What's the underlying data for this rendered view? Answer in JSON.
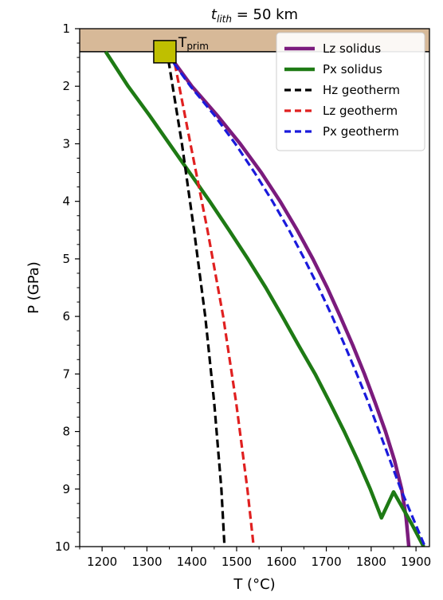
{
  "chart_data": {
    "type": "line",
    "title": {
      "main": "t",
      "sub": "lith",
      "rest": " = 50 km"
    },
    "xlabel": "T (°C)",
    "ylabel": "P (GPa)",
    "xlim": [
      1150,
      1930
    ],
    "ylim": [
      10,
      1
    ],
    "y_inverted": true,
    "xticks": [
      "1200",
      "1300",
      "1400",
      "1500",
      "1600",
      "1700",
      "1800",
      "1900"
    ],
    "yticks": [
      "1",
      "2",
      "3",
      "4",
      "5",
      "6",
      "7",
      "8",
      "9",
      "10"
    ],
    "legend_position": "top-right",
    "lithosphere_band": {
      "p_top": 1.0,
      "p_bottom": 1.4,
      "color": "#d7b998"
    },
    "annotation": {
      "label": "T",
      "sub": "prim",
      "x": 1340,
      "y": 1.4,
      "marker_color": "#bfbf00"
    },
    "series": [
      {
        "name": "Lz solidus",
        "color": "#7b1b7d",
        "style": "solid",
        "points": [
          [
            1353,
            1.5
          ],
          [
            1400,
            2.0
          ],
          [
            1456,
            2.5
          ],
          [
            1508,
            3.0
          ],
          [
            1555,
            3.5
          ],
          [
            1597,
            4.0
          ],
          [
            1635,
            4.5
          ],
          [
            1670,
            5.0
          ],
          [
            1702,
            5.5
          ],
          [
            1731,
            6.0
          ],
          [
            1759,
            6.5
          ],
          [
            1785,
            7.0
          ],
          [
            1809,
            7.5
          ],
          [
            1832,
            8.0
          ],
          [
            1852,
            8.5
          ],
          [
            1868,
            9.0
          ],
          [
            1878,
            9.5
          ],
          [
            1884,
            10.0
          ]
        ]
      },
      {
        "name": "Px solidus",
        "color": "#1e7a14",
        "style": "solid",
        "points": [
          [
            1208,
            1.4
          ],
          [
            1258,
            2.0
          ],
          [
            1305,
            2.5
          ],
          [
            1350,
            3.0
          ],
          [
            1395,
            3.5
          ],
          [
            1440,
            4.0
          ],
          [
            1483,
            4.5
          ],
          [
            1525,
            5.0
          ],
          [
            1565,
            5.5
          ],
          [
            1602,
            6.0
          ],
          [
            1638,
            6.5
          ],
          [
            1675,
            7.0
          ],
          [
            1708,
            7.5
          ],
          [
            1740,
            8.0
          ],
          [
            1770,
            8.5
          ],
          [
            1798,
            9.0
          ],
          [
            1823,
            9.5
          ],
          [
            1850,
            9.05
          ],
          [
            1890,
            9.6
          ],
          [
            1917,
            10.0
          ]
        ]
      },
      {
        "name": "Hz geotherm",
        "color": "#000000",
        "style": "dashed",
        "points": [
          [
            1348,
            1.55
          ],
          [
            1378,
            3.0
          ],
          [
            1405,
            4.5
          ],
          [
            1430,
            6.0
          ],
          [
            1450,
            7.5
          ],
          [
            1466,
            9.0
          ],
          [
            1473,
            10.0
          ]
        ]
      },
      {
        "name": "Lz geotherm",
        "color": "#e02020",
        "style": "dashed",
        "points": [
          [
            1362,
            1.6
          ],
          [
            1397,
            3.0
          ],
          [
            1435,
            4.5
          ],
          [
            1470,
            6.0
          ],
          [
            1499,
            7.5
          ],
          [
            1524,
            9.0
          ],
          [
            1538,
            10.0
          ]
        ]
      },
      {
        "name": "Px geotherm",
        "color": "#1a1adc",
        "style": "dashed",
        "points": [
          [
            1360,
            1.6
          ],
          [
            1397,
            2.0
          ],
          [
            1450,
            2.5
          ],
          [
            1497,
            3.0
          ],
          [
            1540,
            3.5
          ],
          [
            1580,
            4.0
          ],
          [
            1617,
            4.5
          ],
          [
            1651,
            5.0
          ],
          [
            1683,
            5.5
          ],
          [
            1713,
            6.0
          ],
          [
            1741,
            6.5
          ],
          [
            1768,
            7.0
          ],
          [
            1794,
            7.5
          ],
          [
            1818,
            8.0
          ],
          [
            1842,
            8.5
          ],
          [
            1866,
            9.0
          ],
          [
            1893,
            9.5
          ],
          [
            1920,
            10.0
          ]
        ]
      }
    ]
  }
}
